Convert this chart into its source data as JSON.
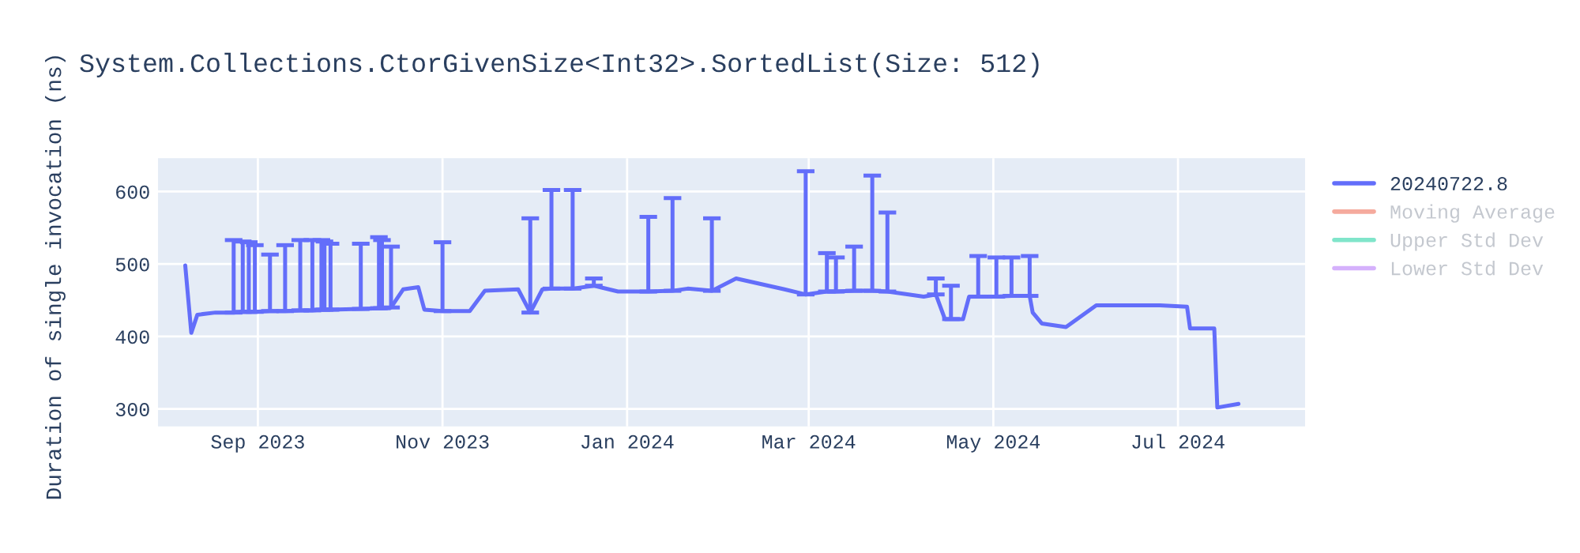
{
  "chart_data": {
    "type": "line",
    "title": "System.Collections.CtorGivenSize<Int32>.SortedList(Size: 512)",
    "ylabel": "Duration of single invocation (ns)",
    "x": [
      "2023-08-08",
      "2023-08-10",
      "2023-08-12",
      "2023-08-18",
      "2023-08-24",
      "2023-08-27",
      "2023-08-29",
      "2023-08-31",
      "2023-09-05",
      "2023-09-10",
      "2023-09-15",
      "2023-09-19",
      "2023-09-22",
      "2023-09-23",
      "2023-09-25",
      "2023-10-05",
      "2023-10-11",
      "2023-10-12",
      "2023-10-15",
      "2023-10-19",
      "2023-10-24",
      "2023-10-26",
      "2023-11-01",
      "2023-11-10",
      "2023-11-15",
      "2023-11-26",
      "2023-11-30",
      "2023-12-04",
      "2023-12-07",
      "2023-12-14",
      "2023-12-21",
      "2023-12-29",
      "2024-01-08",
      "2024-01-16",
      "2024-01-21",
      "2024-01-29",
      "2024-02-06",
      "2024-02-22",
      "2024-02-29",
      "2024-03-07",
      "2024-03-10",
      "2024-03-16",
      "2024-03-22",
      "2024-03-27",
      "2024-04-03",
      "2024-04-08",
      "2024-04-12",
      "2024-04-15",
      "2024-04-17",
      "2024-04-21",
      "2024-04-23",
      "2024-04-26",
      "2024-05-02",
      "2024-05-07",
      "2024-05-13",
      "2024-05-14",
      "2024-05-17",
      "2024-05-25",
      "2024-06-04",
      "2024-06-25",
      "2024-07-04",
      "2024-07-05",
      "2024-07-13",
      "2024-07-14",
      "2024-07-21"
    ],
    "series": [
      {
        "name": "20240722.8",
        "color": "#636efa",
        "values": [
          498,
          405,
          430,
          433,
          433,
          434,
          434,
          434,
          435,
          435,
          436,
          436,
          437,
          437,
          437,
          438,
          439,
          439,
          440,
          465,
          468,
          437,
          435,
          435,
          463,
          465,
          433,
          465,
          466,
          466,
          470,
          462,
          462,
          463,
          466,
          463,
          480,
          465,
          458,
          462,
          462,
          463,
          463,
          462,
          458,
          455,
          458,
          424,
          424,
          424,
          455,
          455,
          455,
          456,
          456,
          433,
          418,
          413,
          443,
          443,
          441,
          411,
          411,
          302,
          307
        ],
        "errors": [
          null,
          null,
          null,
          null,
          [
            433,
            533
          ],
          [
            434,
            531
          ],
          [
            434,
            530
          ],
          [
            434,
            526
          ],
          [
            435,
            513
          ],
          [
            435,
            526
          ],
          [
            436,
            533
          ],
          [
            436,
            533
          ],
          [
            437,
            533
          ],
          [
            437,
            531
          ],
          [
            437,
            528
          ],
          [
            438,
            528
          ],
          [
            439,
            537
          ],
          [
            439,
            533
          ],
          [
            440,
            524
          ],
          null,
          null,
          null,
          [
            435,
            530
          ],
          null,
          null,
          null,
          [
            433,
            563
          ],
          null,
          [
            466,
            602
          ],
          [
            466,
            602
          ],
          [
            470,
            480
          ],
          null,
          [
            462,
            565
          ],
          [
            463,
            591
          ],
          null,
          [
            463,
            563
          ],
          null,
          null,
          [
            458,
            628
          ],
          [
            462,
            515
          ],
          [
            462,
            509
          ],
          [
            463,
            524
          ],
          [
            463,
            622
          ],
          [
            462,
            571
          ],
          null,
          null,
          [
            458,
            480
          ],
          null,
          [
            424,
            470
          ],
          null,
          null,
          [
            455,
            511
          ],
          [
            455,
            509
          ],
          [
            456,
            509
          ],
          [
            456,
            511
          ],
          null,
          null,
          null,
          null,
          null,
          null,
          null,
          null,
          null,
          null
        ]
      },
      {
        "name": "Moving Average",
        "color": "#f5aa9d",
        "values": [
          null,
          null,
          null,
          null,
          null,
          null,
          null,
          null,
          null,
          null,
          null,
          null,
          null,
          null,
          null,
          null,
          null,
          null,
          null,
          null,
          null,
          null,
          null,
          null,
          null,
          null,
          null,
          null,
          null,
          null,
          null,
          null,
          null,
          null,
          null,
          null,
          null,
          null,
          null,
          null,
          null,
          null,
          null,
          null,
          null,
          null,
          null,
          null,
          null,
          null,
          null,
          null,
          null,
          null,
          null,
          null,
          null,
          null,
          null,
          null,
          null,
          null,
          null,
          null,
          null
        ]
      },
      {
        "name": "Upper Std Dev",
        "color": "#80e5ca",
        "values": [
          null,
          null,
          null,
          null,
          null,
          null,
          null,
          null,
          null,
          null,
          null,
          null,
          null,
          null,
          null,
          null,
          null,
          null,
          null,
          null,
          null,
          null,
          null,
          null,
          null,
          null,
          null,
          null,
          null,
          null,
          null,
          null,
          null,
          null,
          null,
          null,
          null,
          null,
          null,
          null,
          null,
          null,
          null,
          null,
          null,
          null,
          null,
          null,
          null,
          null,
          null,
          null,
          null,
          null,
          null,
          null,
          null,
          null,
          null,
          null,
          null,
          null,
          null,
          null,
          null
        ]
      },
      {
        "name": "Lower Std Dev",
        "color": "#d5b1fc",
        "values": [
          null,
          null,
          null,
          null,
          null,
          null,
          null,
          null,
          null,
          null,
          null,
          null,
          null,
          null,
          null,
          null,
          null,
          null,
          null,
          null,
          null,
          null,
          null,
          null,
          null,
          null,
          null,
          null,
          null,
          null,
          null,
          null,
          null,
          null,
          null,
          null,
          null,
          null,
          null,
          null,
          null,
          null,
          null,
          null,
          null,
          null,
          null,
          null,
          null,
          null,
          null,
          null,
          null,
          null,
          null,
          null,
          null,
          null,
          null,
          null,
          null,
          null,
          null,
          null,
          null
        ]
      }
    ],
    "xlim": [
      "2023-07-30",
      "2024-08-12"
    ],
    "xticks": [
      {
        "value": "2023-09-01",
        "label": "Sep 2023"
      },
      {
        "value": "2023-11-01",
        "label": "Nov 2023"
      },
      {
        "value": "2024-01-01",
        "label": "Jan 2024"
      },
      {
        "value": "2024-03-01",
        "label": "Mar 2024"
      },
      {
        "value": "2024-05-01",
        "label": "May 2024"
      },
      {
        "value": "2024-07-01",
        "label": "Jul 2024"
      }
    ],
    "ylim": [
      276,
      646
    ],
    "yticks": [
      300,
      400,
      500,
      600
    ],
    "grid": true,
    "legend": "top right"
  }
}
